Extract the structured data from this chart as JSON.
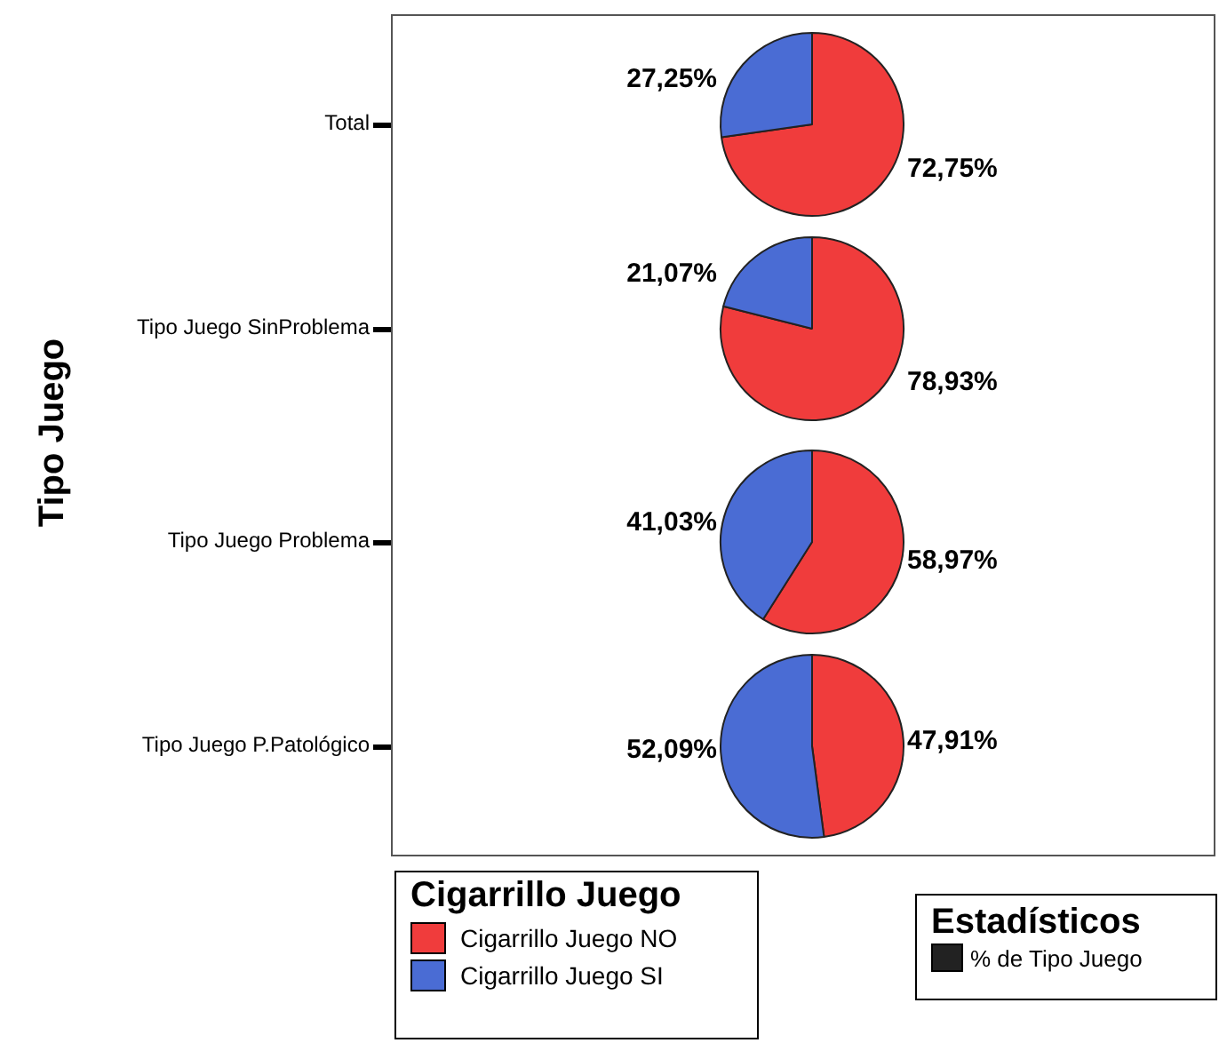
{
  "chart_data": [
    {
      "type": "pie",
      "title": "Total",
      "ylabel": "Tipo Juego",
      "categories": [
        "Cigarrillo Juego NO",
        "Cigarrillo Juego SI"
      ],
      "values": [
        72.75,
        27.25
      ],
      "colors": [
        "#f03c3c",
        "#4a6cd4"
      ],
      "value_labels": [
        "72,75%",
        "27,25%"
      ],
      "legend": "bottom",
      "legend_title": "Cigarrillo Juego",
      "annotations": [
        "Estadísticos",
        "% de Tipo Juego"
      ]
    },
    {
      "type": "pie",
      "title": "Tipo Juego SinProblema",
      "categories": [
        null,
        null
      ],
      "values": [
        78.93,
        21.07
      ],
      "colors": [
        "#f03c3c",
        "#4a6cd4"
      ],
      "value_labels": [
        "78,93%",
        "21,07%"
      ]
    },
    {
      "type": "pie",
      "title": "Tipo Juego Problema",
      "categories": [
        null,
        null
      ],
      "values": [
        58.97,
        41.03
      ],
      "colors": [
        "#f03c3c",
        "#4a6cd4"
      ],
      "value_labels": [
        "58,97%",
        "41,03%"
      ]
    },
    {
      "type": "pie",
      "title": "Tipo Juego P.Patológico",
      "categories": [
        null,
        null
      ],
      "values": [
        47.91,
        52.09
      ],
      "colors": [
        "#f03c3c",
        "#4a6cd4"
      ],
      "value_labels": [
        "47,91%",
        "52,09%"
      ]
    }
  ]
}
